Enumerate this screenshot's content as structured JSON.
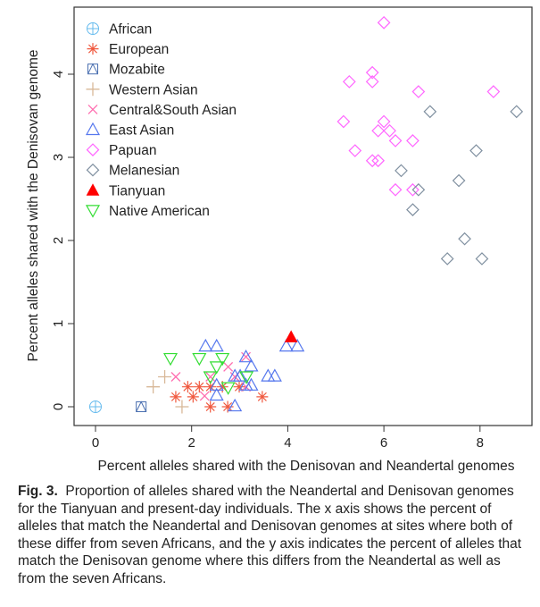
{
  "chart_data": {
    "type": "scatter",
    "xlabel": "Percent alleles shared with the Denisovan and Neandertal genomes",
    "ylabel": "Percent alleles shared with the Denisovan genome",
    "xlim": [
      -0.3,
      9.1
    ],
    "ylim": [
      -0.2,
      4.75
    ],
    "xticks": [
      "0",
      "2",
      "4",
      "6",
      "8"
    ],
    "yticks": [
      "0",
      "1",
      "2",
      "3",
      "4"
    ],
    "grid": false,
    "legend_position": "top-left",
    "series": [
      {
        "name": "African",
        "color": "#66bbee",
        "marker": "circle-plus",
        "points": [
          [
            0,
            0
          ]
        ]
      },
      {
        "name": "European",
        "color": "#f05a40",
        "marker": "asterisk",
        "points": [
          [
            1.92,
            0.24
          ],
          [
            2.16,
            0.24
          ],
          [
            2.39,
            0.24
          ],
          [
            2.64,
            0.24
          ],
          [
            2.99,
            0.24
          ],
          [
            1.67,
            0.12
          ],
          [
            2.03,
            0.12
          ],
          [
            3.47,
            0.12
          ],
          [
            2.39,
            0
          ],
          [
            2.75,
            0
          ]
        ]
      },
      {
        "name": "Mozabite",
        "color": "#4a6fb0",
        "marker": "square-triangle",
        "points": [
          [
            0.95,
            0
          ]
        ]
      },
      {
        "name": "Western Asian",
        "color": "#d8b898",
        "marker": "plus",
        "points": [
          [
            1.44,
            0.36
          ],
          [
            1.2,
            0.24
          ],
          [
            1.8,
            0
          ]
        ]
      },
      {
        "name": "Central&South Asian",
        "color": "#ff6fb0",
        "marker": "cross",
        "points": [
          [
            1.67,
            0.36
          ],
          [
            2.76,
            0.48
          ],
          [
            3.13,
            0.6
          ],
          [
            2.39,
            0.36
          ],
          [
            2.9,
            0.36
          ],
          [
            2.27,
            0.13
          ],
          [
            3.13,
            0.24
          ]
        ]
      },
      {
        "name": "East Asian",
        "color": "#5577ee",
        "marker": "triangle",
        "points": [
          [
            2.29,
            0.73
          ],
          [
            2.52,
            0.73
          ],
          [
            3.97,
            0.73
          ],
          [
            4.2,
            0.73
          ],
          [
            3.13,
            0.6
          ],
          [
            3.24,
            0.49
          ],
          [
            2.9,
            0.37
          ],
          [
            3.01,
            0.37
          ],
          [
            3.59,
            0.37
          ],
          [
            3.73,
            0.37
          ],
          [
            2.52,
            0.26
          ],
          [
            3.13,
            0.26
          ],
          [
            3.24,
            0.26
          ],
          [
            2.52,
            0.14
          ],
          [
            2.9,
            0.01
          ]
        ]
      },
      {
        "name": "Papuan",
        "color": "#ff66ff",
        "marker": "diamond",
        "points": [
          [
            6.0,
            4.62
          ],
          [
            5.76,
            4.02
          ],
          [
            5.28,
            3.91
          ],
          [
            5.76,
            3.91
          ],
          [
            6.72,
            3.79
          ],
          [
            8.28,
            3.79
          ],
          [
            5.16,
            3.43
          ],
          [
            6.0,
            3.43
          ],
          [
            5.88,
            3.32
          ],
          [
            6.12,
            3.32
          ],
          [
            6.24,
            3.2
          ],
          [
            6.6,
            3.2
          ],
          [
            5.4,
            3.08
          ],
          [
            5.76,
            2.96
          ],
          [
            5.88,
            2.96
          ],
          [
            6.24,
            2.61
          ],
          [
            6.6,
            2.61
          ]
        ]
      },
      {
        "name": "Melanesian",
        "color": "#8090a0",
        "marker": "diamond",
        "points": [
          [
            6.96,
            3.55
          ],
          [
            8.76,
            3.55
          ],
          [
            7.92,
            3.08
          ],
          [
            6.36,
            2.84
          ],
          [
            7.56,
            2.72
          ],
          [
            6.72,
            2.61
          ],
          [
            6.6,
            2.37
          ],
          [
            7.68,
            2.02
          ],
          [
            7.32,
            1.78
          ],
          [
            8.04,
            1.78
          ]
        ]
      },
      {
        "name": "Tianyuan",
        "color": "#ff0000",
        "marker": "triangle-filled",
        "points": [
          [
            4.07,
            0.84
          ]
        ]
      },
      {
        "name": "Native American",
        "color": "#33dd33",
        "marker": "triangle-down",
        "points": [
          [
            1.56,
            0.58
          ],
          [
            2.16,
            0.58
          ],
          [
            2.64,
            0.58
          ],
          [
            2.52,
            0.48
          ],
          [
            2.39,
            0.36
          ],
          [
            3.14,
            0.36
          ],
          [
            2.76,
            0.23
          ]
        ]
      }
    ]
  },
  "caption": {
    "label": "Fig. 3.",
    "text": "Proportion of alleles shared with the Neandertal and Denisovan genomes for the Tianyuan and present-day individuals. The x axis shows the percent of alleles that match the Neandertal and Denisovan genomes at sites where both of these differ from seven Africans, and the y axis indicates the percent of alleles that match the Denisovan genome where this differs from the Neandertal as well as from the seven Africans."
  }
}
